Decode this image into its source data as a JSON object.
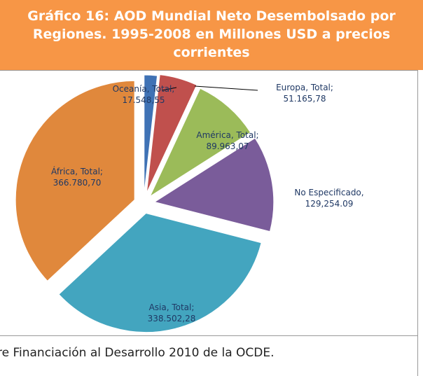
{
  "title": "Gráfico 16: AOD Mundial Neto Desembolsado por Regiones. 1995-2008 en Millones USD a precios corrientes",
  "chart_data": {
    "type": "pie",
    "categories": [
      "Oceanía, Total;",
      "Europa, Total;",
      "América, Total;",
      "No Especificado,",
      "Asia, Total;",
      "África, Total;"
    ],
    "values": [
      17548.55,
      51165.78,
      89963.07,
      129254.09,
      338502.28,
      366780.7
    ],
    "value_labels": [
      "17.548,55",
      "51.165,78",
      "89.963,07",
      "129,254.09",
      "338.502,28",
      "366.780,70"
    ],
    "colors": [
      "#3f72b5",
      "#c0504d",
      "#9bbb59",
      "#7a5c9a",
      "#43a5bf",
      "#e0883c"
    ]
  },
  "footer": "re Financiación al Desarrollo 2010 de la OCDE."
}
